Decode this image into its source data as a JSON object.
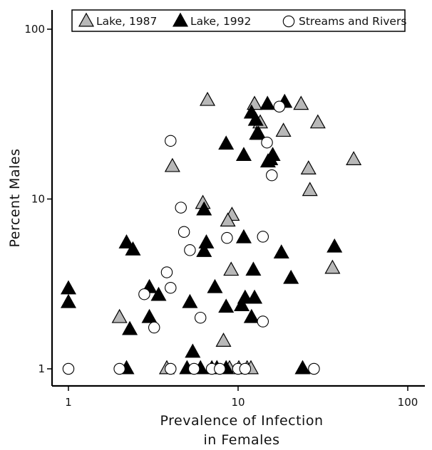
{
  "chart_data": {
    "type": "scatter",
    "xlabel_lines": [
      "Prevalence of Infection",
      "in Females"
    ],
    "ylabel": "Percent Males",
    "x_scale": "log",
    "y_scale": "log",
    "xlim": [
      0.9,
      120
    ],
    "ylim": [
      0.85,
      110
    ],
    "x_ticks": [
      {
        "value": 1,
        "label": "1"
      },
      {
        "value": 10,
        "label": "10"
      },
      {
        "value": 100,
        "label": "100"
      }
    ],
    "y_ticks": [
      {
        "value": 1,
        "label": "1"
      },
      {
        "value": 10,
        "label": "10"
      },
      {
        "value": 100,
        "label": "100"
      }
    ],
    "grid": false,
    "legend_position": "top",
    "series": [
      {
        "name": "Lake, 1987",
        "marker": "triangle",
        "color": "#b8b8b8",
        "points": [
          [
            6.6,
            38
          ],
          [
            12.5,
            36
          ],
          [
            23.5,
            36
          ],
          [
            13.5,
            28
          ],
          [
            29.5,
            28
          ],
          [
            18.5,
            25
          ],
          [
            4.1,
            15.5
          ],
          [
            26,
            15
          ],
          [
            48,
            17
          ],
          [
            26.5,
            11.2
          ],
          [
            6.2,
            9.4
          ],
          [
            9.2,
            8
          ],
          [
            8.7,
            7.4
          ],
          [
            9.1,
            3.8
          ],
          [
            36,
            3.9
          ],
          [
            2,
            2
          ],
          [
            8.2,
            1.45
          ],
          [
            3.8,
            1
          ],
          [
            7.5,
            1
          ],
          [
            8.9,
            1
          ],
          [
            10.1,
            1
          ],
          [
            11.3,
            1
          ],
          [
            11.9,
            1
          ]
        ]
      },
      {
        "name": "Lake, 1992",
        "marker": "triangle",
        "color": "#000000",
        "points": [
          [
            18.8,
            37
          ],
          [
            14.9,
            36
          ],
          [
            12,
            32
          ],
          [
            12.7,
            29
          ],
          [
            13.2,
            24
          ],
          [
            12.9,
            24
          ],
          [
            8.5,
            21
          ],
          [
            10.8,
            18
          ],
          [
            16,
            18
          ],
          [
            15.5,
            17
          ],
          [
            15,
            16.5
          ],
          [
            6.3,
            8.6
          ],
          [
            6.5,
            5.5
          ],
          [
            6.3,
            4.9
          ],
          [
            2.2,
            5.5
          ],
          [
            2.4,
            5
          ],
          [
            10.8,
            5.9
          ],
          [
            18,
            4.8
          ],
          [
            37,
            5.2
          ],
          [
            12.3,
            3.8
          ],
          [
            20.5,
            3.4
          ],
          [
            7.3,
            3
          ],
          [
            3,
            3
          ],
          [
            3.4,
            2.7
          ],
          [
            11,
            2.6
          ],
          [
            12.5,
            2.6
          ],
          [
            1,
            2.95
          ],
          [
            1,
            2.45
          ],
          [
            5.2,
            2.45
          ],
          [
            8.5,
            2.3
          ],
          [
            10.5,
            2.35
          ],
          [
            3,
            2
          ],
          [
            12,
            2
          ],
          [
            2.3,
            1.7
          ],
          [
            5.4,
            1.25
          ],
          [
            2.2,
            1
          ],
          [
            5,
            1
          ],
          [
            6,
            1
          ],
          [
            7,
            1
          ],
          [
            7.5,
            1
          ],
          [
            8.5,
            1
          ],
          [
            24,
            1
          ]
        ]
      },
      {
        "name": "Streams and Rivers",
        "marker": "circle",
        "color": "#ffffff",
        "points": [
          [
            17.5,
            35
          ],
          [
            4,
            22
          ],
          [
            14.8,
            21.5
          ],
          [
            15.8,
            13.8
          ],
          [
            4.6,
            8.9
          ],
          [
            4.8,
            6.4
          ],
          [
            8.6,
            5.9
          ],
          [
            14,
            6
          ],
          [
            5.2,
            5
          ],
          [
            3.8,
            3.7
          ],
          [
            4,
            3
          ],
          [
            2.8,
            2.75
          ],
          [
            3.2,
            1.75
          ],
          [
            6,
            2
          ],
          [
            14,
            1.9
          ],
          [
            1,
            1
          ],
          [
            2,
            1
          ],
          [
            4,
            1
          ],
          [
            5.5,
            1
          ],
          [
            7,
            1
          ],
          [
            7.8,
            1
          ],
          [
            10,
            1
          ],
          [
            11,
            1
          ],
          [
            28,
            1
          ]
        ]
      }
    ]
  }
}
